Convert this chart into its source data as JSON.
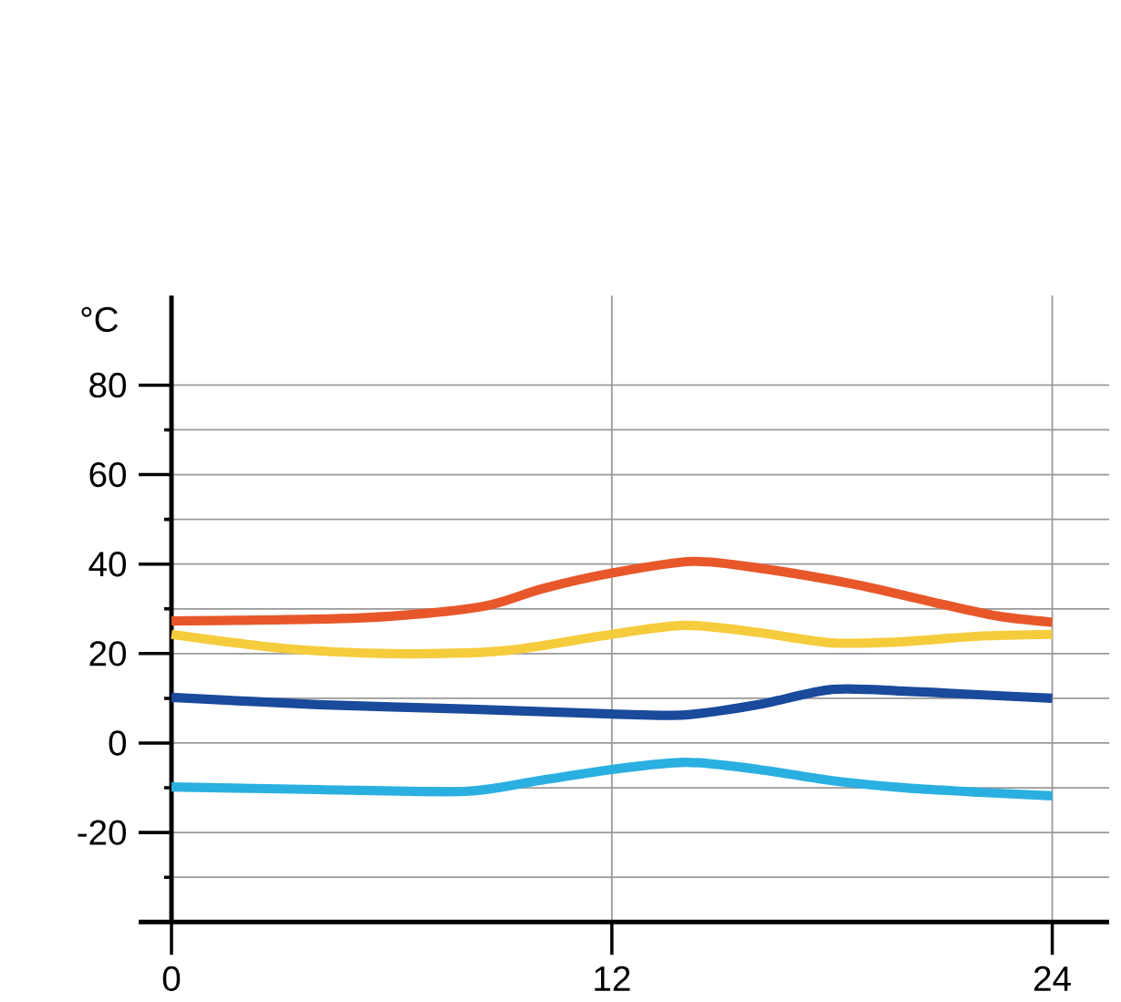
{
  "chart_data": {
    "type": "line",
    "ylabel": "°C",
    "xlim": [
      0,
      25.55
    ],
    "ylim": [
      -40,
      100
    ],
    "xticks": [
      0,
      12,
      24
    ],
    "yticks": [
      {
        "value": -30,
        "label": null
      },
      -20,
      {
        "value": -10,
        "label": null
      },
      0,
      {
        "value": 10,
        "label": null
      },
      20,
      {
        "value": 30,
        "label": null
      },
      40,
      {
        "value": 50,
        "label": null
      },
      60,
      {
        "value": 70,
        "label": null
      },
      80
    ],
    "grid": true,
    "marker": "none",
    "line_style": "solid",
    "series": [
      {
        "color": "#e8572a",
        "x": [
          0,
          5.2,
          8.4,
          10.1,
          12,
          14.2,
          16.1,
          18.6,
          20.8,
          22.5,
          24
        ],
        "values": [
          27.3,
          28,
          30.4,
          34.5,
          38,
          40.6,
          39,
          35.5,
          31.4,
          28.4,
          27
        ]
      },
      {
        "color": "#f5cc3c",
        "x": [
          0,
          3,
          6,
          9,
          12,
          14,
          16,
          18,
          20,
          22,
          24
        ],
        "values": [
          24.3,
          21.2,
          20,
          20.6,
          24.3,
          26.3,
          24.7,
          22.4,
          22.7,
          23.9,
          24.3
        ]
      },
      {
        "color": "#1a4a9c",
        "x": [
          0,
          4,
          8,
          12,
          14,
          16,
          18,
          20,
          22,
          24
        ],
        "values": [
          10.2,
          8.6,
          7.6,
          6.5,
          6.3,
          8.6,
          12,
          11.6,
          10.8,
          10
        ]
      },
      {
        "color": "#2ab0e0",
        "x": [
          0,
          4,
          8,
          10,
          12,
          14,
          16,
          18,
          20,
          22,
          24
        ],
        "values": [
          -9.8,
          -10.4,
          -10.8,
          -8.4,
          -5.9,
          -4.3,
          -5.9,
          -8.4,
          -10,
          -11,
          -11.8
        ]
      }
    ]
  }
}
